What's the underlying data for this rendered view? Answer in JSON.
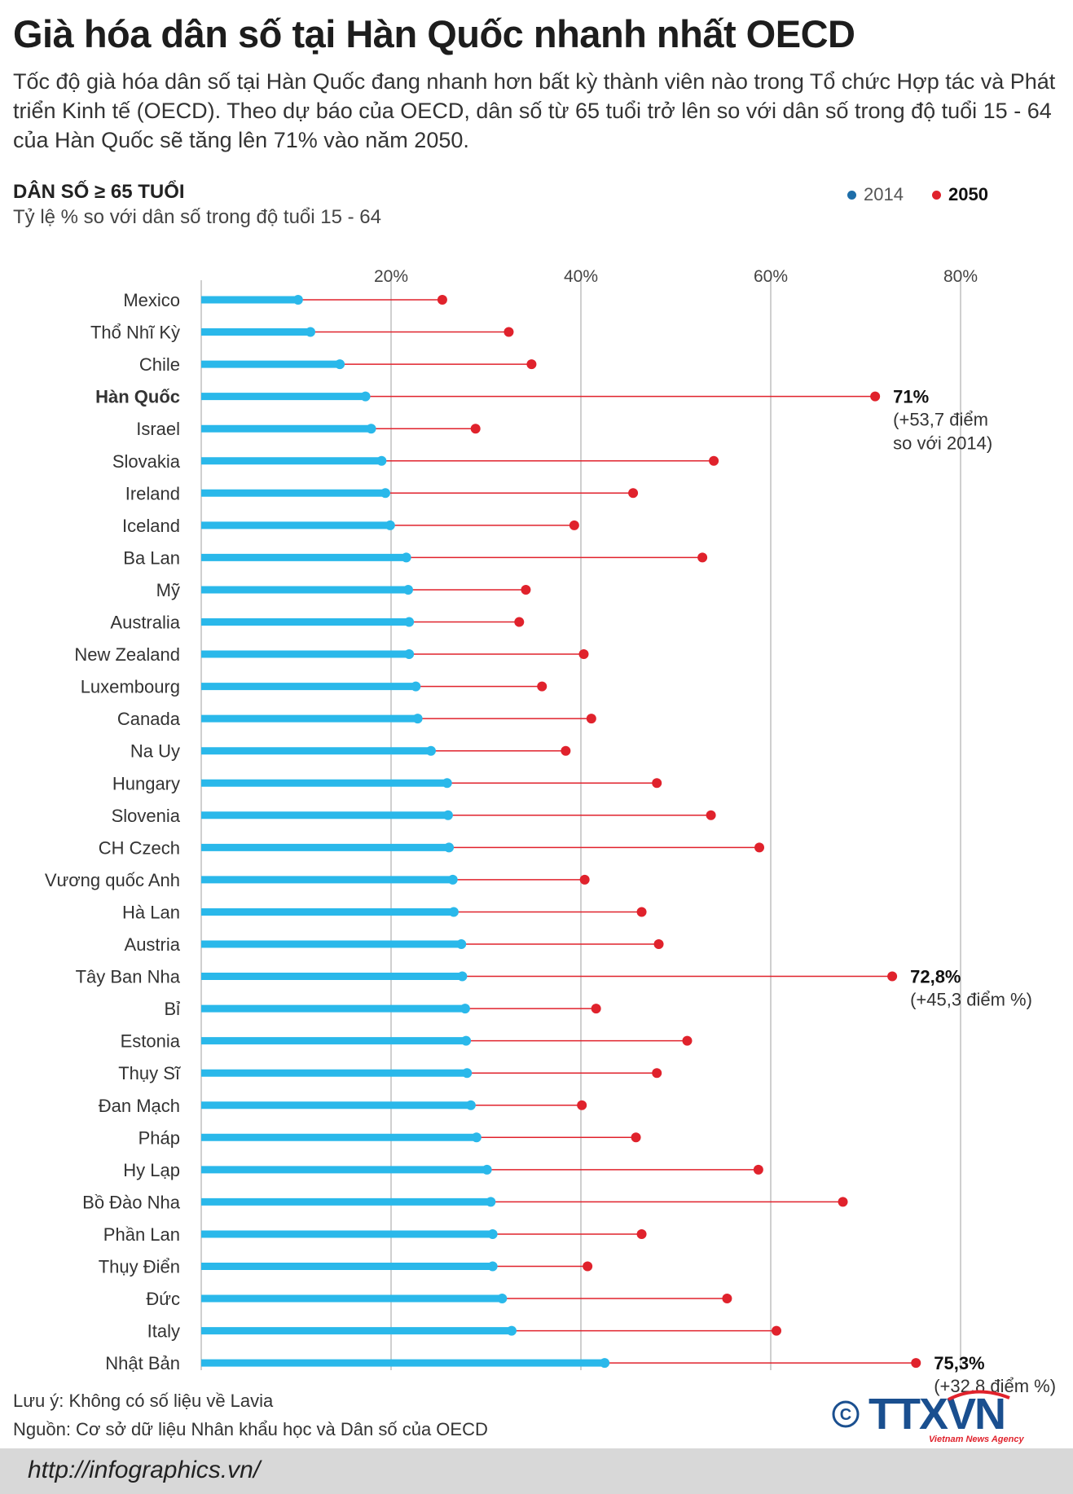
{
  "title": "Già hóa dân số tại Hàn Quốc nhanh nhất OECD",
  "intro": "Tốc độ già hóa dân số tại Hàn Quốc đang nhanh hơn bất kỳ thành viên nào trong Tổ chức Hợp tác và Phát triển Kinh tế (OECD). Theo dự báo của OECD, dân số từ 65 tuổi trở lên so với dân số trong độ tuổi 15 - 64 của Hàn Quốc sẽ tăng lên 71% vào năm 2050.",
  "subtitle_bold": "DÂN SỐ ≥ 65 TUỔI",
  "subtitle_light": "Tỷ lệ % so với dân số trong độ tuổi 15 - 64",
  "legend": {
    "label_2014": "2014",
    "label_2050": "2050"
  },
  "colors": {
    "bar_2014": "#2ab8ea",
    "dot_2050": "#e0222c",
    "line_2050": "#e0222c",
    "grid": "#cfcfcf"
  },
  "chart_data": {
    "type": "dumbbell",
    "title": "DÂN SỐ ≥ 65 TUỔI",
    "ylabel": "Tỷ lệ % so với dân số trong độ tuổi 15 - 64",
    "xlim": [
      0,
      80
    ],
    "ticks": [
      20,
      40,
      60,
      80
    ],
    "tick_labels": [
      "20%",
      "40%",
      "60%",
      "80%"
    ],
    "categories": [
      "Mexico",
      "Thổ Nhĩ Kỳ",
      "Chile",
      "Hàn Quốc",
      "Israel",
      "Slovakia",
      "Ireland",
      "Iceland",
      "Ba Lan",
      "Mỹ",
      "Australia",
      "New Zealand",
      "Luxembourg",
      "Canada",
      "Na Uy",
      "Hungary",
      "Slovenia",
      "CH Czech",
      "Vương quốc Anh",
      "Hà Lan",
      "Austria",
      "Tây Ban Nha",
      "Bỉ",
      "Estonia",
      "Thụy Sĩ",
      "Đan Mạch",
      "Pháp",
      "Hy Lạp",
      "Bồ Đào Nha",
      "Phần Lan",
      "Thụy Điển",
      "Đức",
      "Italy",
      "Nhật Bản"
    ],
    "highlight": "Hàn Quốc",
    "series": [
      {
        "name": "2014",
        "values": [
          10.2,
          11.5,
          14.6,
          17.3,
          17.9,
          19.0,
          19.4,
          19.9,
          21.6,
          21.8,
          21.9,
          21.9,
          22.6,
          22.8,
          24.2,
          25.9,
          26.0,
          26.1,
          26.5,
          26.6,
          27.4,
          27.5,
          27.8,
          27.9,
          28.0,
          28.4,
          29.0,
          30.1,
          30.5,
          30.7,
          30.7,
          31.7,
          32.7,
          42.5
        ]
      },
      {
        "name": "2050",
        "values": [
          25.4,
          32.4,
          34.8,
          71.0,
          28.9,
          54.0,
          45.5,
          39.3,
          52.8,
          34.2,
          33.5,
          40.3,
          35.9,
          41.1,
          38.4,
          48.0,
          53.7,
          58.8,
          40.4,
          46.4,
          48.2,
          72.8,
          41.6,
          51.2,
          48.0,
          40.1,
          45.8,
          58.7,
          67.6,
          46.4,
          40.7,
          55.4,
          60.6,
          75.3
        ]
      }
    ],
    "annotations": [
      {
        "country": "Hàn Quốc",
        "value": "71%",
        "lines": [
          "(+53,7 điểm",
          "so với 2014)"
        ]
      },
      {
        "country": "Tây Ban Nha",
        "value": "72,8%",
        "lines": [
          "(+45,3 điểm %)"
        ]
      },
      {
        "country": "Nhật Bản",
        "value": "75,3%",
        "lines": [
          "(+32.8 điểm %)"
        ]
      }
    ]
  },
  "note": "Lưu ý: Không có số liệu về Lavia",
  "source": "Nguồn: Cơ sở dữ liệu Nhân khẩu học và Dân số của OECD",
  "url": "http://infographics.vn/",
  "logo": {
    "copyright": "©",
    "name": "TTXVN",
    "tagline": "Vietnam News Agency"
  }
}
